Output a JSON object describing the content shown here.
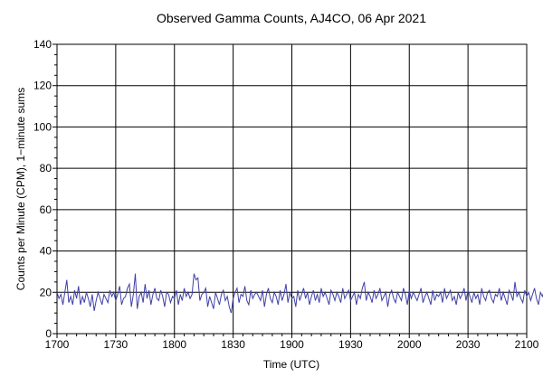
{
  "chart_data": {
    "type": "line",
    "title": "Observed Gamma Counts, AJ4CO, 06 Apr 2021",
    "xlabel": "Time (UTC)",
    "ylabel": "Counts per Minute (CPM), 1−minute sums",
    "x_tick_labels": [
      "1700",
      "1730",
      "1800",
      "1830",
      "1900",
      "1930",
      "2000",
      "2030",
      "2100"
    ],
    "y_ticks": [
      0,
      20,
      40,
      60,
      80,
      100,
      120,
      140
    ],
    "xlim_minutes": [
      0,
      240
    ],
    "ylim": [
      0,
      140
    ],
    "grid": true,
    "colors": {
      "series": "#4040a8",
      "grid": "#000000"
    },
    "series": [
      {
        "x_step_minutes": 1,
        "values": [
          20,
          17,
          19,
          14,
          20,
          26,
          15,
          18,
          14,
          21,
          17,
          23,
          14,
          18,
          15,
          20,
          17,
          13,
          19,
          11,
          16,
          20,
          17,
          14,
          19,
          17,
          15,
          21,
          18,
          20,
          16,
          19,
          23,
          14,
          17,
          18,
          22,
          24,
          13,
          19,
          29,
          12,
          18,
          20,
          15,
          24,
          17,
          21,
          14,
          19,
          22,
          17,
          16,
          21,
          18,
          13,
          20,
          19,
          15,
          18,
          17,
          21,
          14,
          19,
          16,
          22,
          18,
          20,
          17,
          19,
          29,
          26,
          27,
          16,
          19,
          20,
          22,
          13,
          18,
          15,
          12,
          20,
          17,
          14,
          19,
          21,
          16,
          18,
          13,
          10,
          17,
          20,
          22,
          15,
          19,
          18,
          23,
          16,
          14,
          21,
          17,
          19,
          20,
          18,
          16,
          21,
          13,
          19,
          22,
          17,
          15,
          20,
          18,
          14,
          21,
          16,
          19,
          24,
          15,
          20,
          17,
          18,
          13,
          21,
          16,
          19,
          22,
          17,
          20,
          14,
          18,
          21,
          16,
          19,
          15,
          22,
          18,
          20,
          17,
          14,
          21,
          19,
          16,
          20,
          18,
          15,
          22,
          17,
          19,
          21,
          16,
          18,
          20,
          14,
          19,
          17,
          22,
          25,
          16,
          20,
          18,
          15,
          21,
          17,
          19,
          22,
          16,
          18,
          20,
          13,
          19,
          21,
          17,
          15,
          20,
          18,
          16,
          22,
          19,
          14,
          21,
          17,
          20,
          18,
          16,
          19,
          22,
          15,
          18,
          20,
          17,
          14,
          21,
          16,
          19,
          18,
          20,
          15,
          22,
          17,
          19,
          21,
          16,
          18,
          14,
          20,
          17,
          19,
          22,
          16,
          21,
          18,
          15,
          20,
          17,
          19,
          14,
          22,
          18,
          16,
          20,
          21,
          17,
          15,
          19,
          18,
          22,
          16,
          20,
          17,
          14,
          21,
          19,
          16,
          25,
          18,
          20,
          17,
          15,
          21,
          18,
          20,
          16,
          19,
          22,
          17,
          14,
          20,
          18,
          21
        ]
      }
    ]
  }
}
